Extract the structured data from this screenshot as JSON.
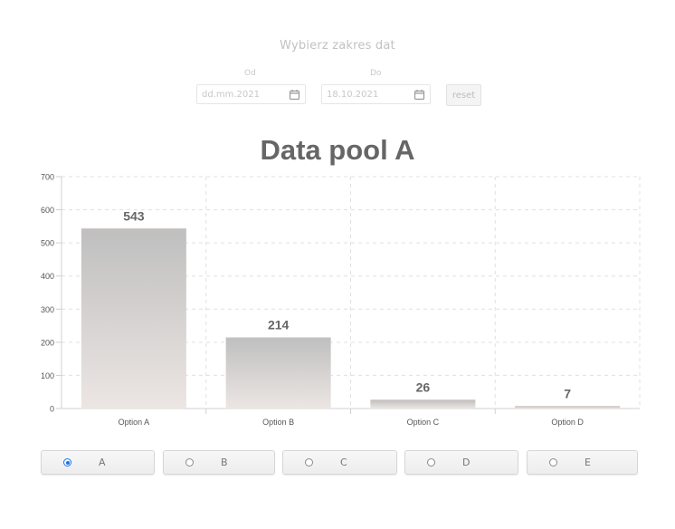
{
  "date_range": {
    "title": "Wybierz zakres dat",
    "from_label": "Od",
    "from_value": "dd.mm.2021",
    "to_label": "Do",
    "to_value": "18.10.2021",
    "reset_label": "reset"
  },
  "tabs": [
    {
      "label": "A",
      "checked": true
    },
    {
      "label": "B",
      "checked": false
    },
    {
      "label": "C",
      "checked": false
    },
    {
      "label": "D",
      "checked": false
    },
    {
      "label": "E",
      "checked": false
    }
  ],
  "colors": {
    "bar_top": "#bfbfbf",
    "bar_bottom": "#ece6e3",
    "grid": "#e0e0e0",
    "radio_accent": "#1a73e8"
  },
  "chart_data": {
    "type": "bar",
    "title": "Data pool A",
    "categories": [
      "Option A",
      "Option B",
      "Option C",
      "Option D"
    ],
    "values": [
      543,
      214,
      26,
      7
    ],
    "data_labels": [
      "543",
      "214",
      "26",
      "7"
    ],
    "ylim": [
      0,
      700
    ],
    "yticks": [
      0,
      100,
      200,
      300,
      400,
      500,
      600,
      700
    ],
    "grid": true,
    "grid_style": "dashed",
    "legend": "none"
  }
}
